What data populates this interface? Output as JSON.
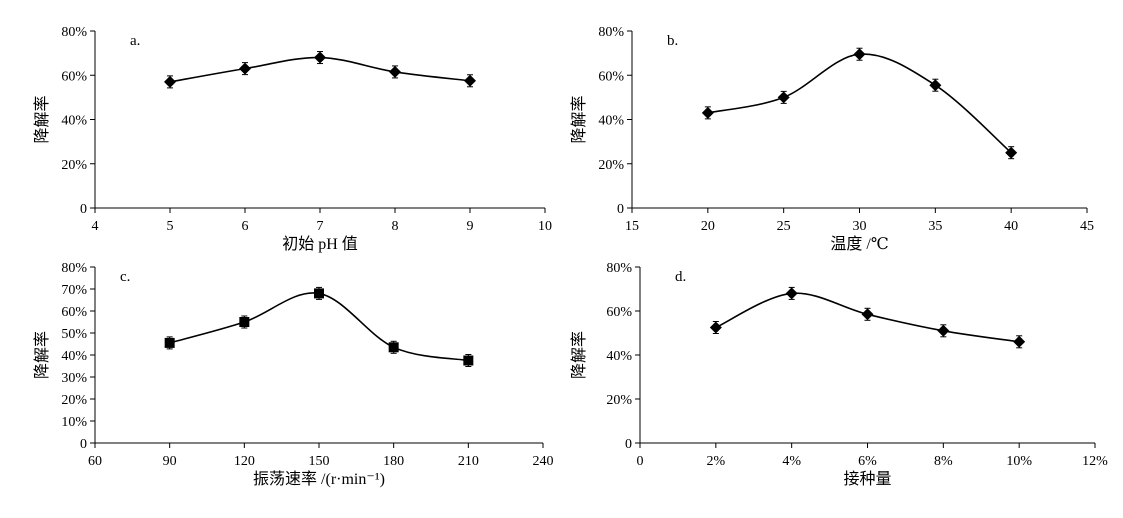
{
  "chart_data": [
    {
      "type": "line",
      "panel_label": "a.",
      "xlabel": "初始 pH 值",
      "ylabel": "降解率",
      "xlim": [
        4,
        10
      ],
      "ylim": [
        0,
        80
      ],
      "x_ticks": [
        4,
        5,
        6,
        7,
        8,
        9,
        10
      ],
      "x_tick_labels": [
        "4",
        "5",
        "6",
        "7",
        "8",
        "9",
        "10"
      ],
      "y_ticks": [
        0,
        20,
        40,
        60,
        80
      ],
      "y_tick_labels": [
        "0",
        "20%",
        "40%",
        "60%",
        "80%"
      ],
      "marker": "diamond",
      "x": [
        5,
        6,
        7,
        8,
        9
      ],
      "values": [
        57,
        63,
        68,
        61.5,
        57.5
      ]
    },
    {
      "type": "line",
      "panel_label": "b.",
      "xlabel": "温度 /℃",
      "ylabel": "降解率",
      "xlim": [
        15,
        45
      ],
      "ylim": [
        0,
        80
      ],
      "x_ticks": [
        15,
        20,
        25,
        30,
        35,
        40,
        45
      ],
      "x_tick_labels": [
        "15",
        "20",
        "25",
        "30",
        "35",
        "40",
        "45"
      ],
      "y_ticks": [
        0,
        20,
        40,
        60,
        80
      ],
      "y_tick_labels": [
        "0",
        "20%",
        "40%",
        "60%",
        "80%"
      ],
      "marker": "diamond",
      "x": [
        20,
        25,
        30,
        35,
        40
      ],
      "values": [
        43,
        50,
        69.5,
        55.5,
        25
      ]
    },
    {
      "type": "line",
      "panel_label": "c.",
      "xlabel": "振荡速率 /(r·min⁻¹)",
      "ylabel": "降解率",
      "xlim": [
        60,
        240
      ],
      "ylim": [
        0,
        80
      ],
      "x_ticks": [
        60,
        90,
        120,
        150,
        180,
        210,
        240
      ],
      "x_tick_labels": [
        "60",
        "90",
        "120",
        "150",
        "180",
        "210",
        "240"
      ],
      "y_ticks": [
        0,
        10,
        20,
        30,
        40,
        50,
        60,
        70,
        80
      ],
      "y_tick_labels": [
        "0",
        "10%",
        "20%",
        "30%",
        "40%",
        "50%",
        "60%",
        "70%",
        "80%"
      ],
      "marker": "square",
      "x": [
        90,
        120,
        150,
        180,
        210
      ],
      "values": [
        45.5,
        55,
        68,
        43.5,
        37.5
      ]
    },
    {
      "type": "line",
      "panel_label": "d.",
      "xlabel": "接种量",
      "ylabel": "降解率",
      "xlim": [
        0,
        12
      ],
      "ylim": [
        0,
        80
      ],
      "x_ticks": [
        0,
        2,
        4,
        6,
        8,
        10,
        12
      ],
      "x_tick_labels": [
        "0",
        "2%",
        "4%",
        "6%",
        "8%",
        "10%",
        "12%"
      ],
      "y_ticks": [
        0,
        20,
        40,
        60,
        80
      ],
      "y_tick_labels": [
        "0",
        "20%",
        "40%",
        "60%",
        "80%"
      ],
      "marker": "diamond",
      "x": [
        2,
        4,
        6,
        8,
        10
      ],
      "values": [
        52.5,
        68,
        58.5,
        51,
        46
      ]
    }
  ]
}
